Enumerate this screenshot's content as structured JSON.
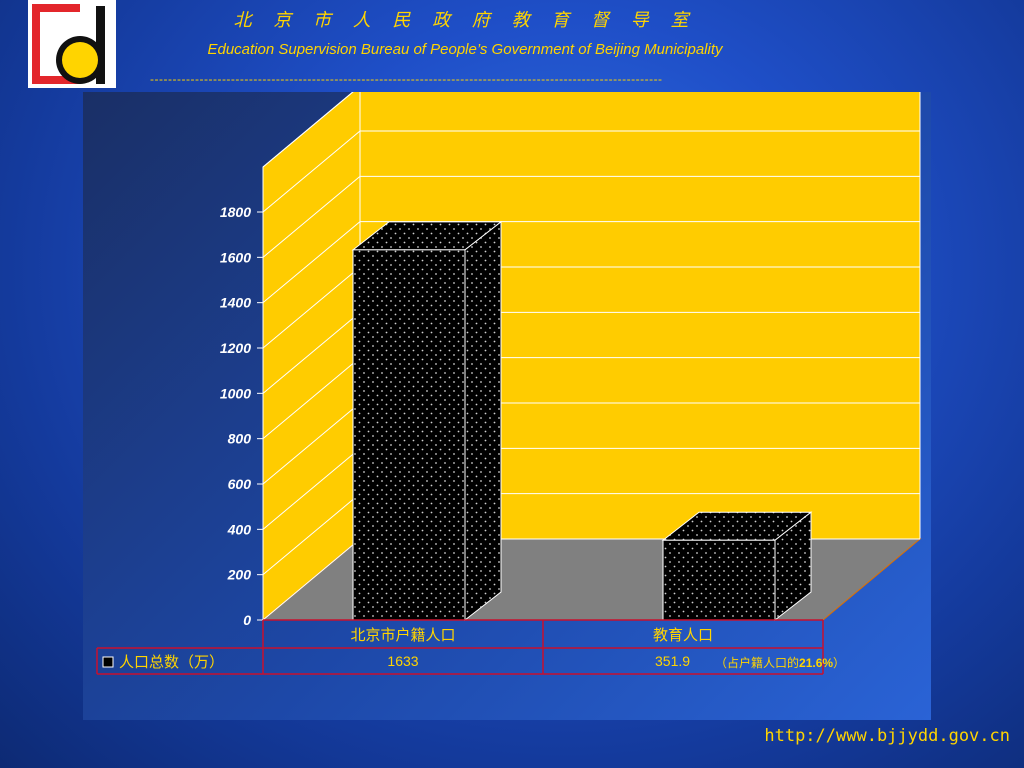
{
  "header": {
    "title_cn": "北 京 市 人 民 政 府 教 育 督 导 室",
    "title_en": "Education Supervision Bureau of People’s Government of Beijing Municipality",
    "divider": "------------------------------------------------------------------------------------------------------------------"
  },
  "colors": {
    "accent_yellow": "#ffd400",
    "chart_wall": "#ffcc00",
    "chart_floor": "#808080",
    "bar": "#000000",
    "table_border": "#c8102e",
    "logo_red": "#e3262b"
  },
  "chart_data": {
    "type": "bar",
    "style": "3d",
    "categories": [
      "北京市户籍人口",
      "教育人口"
    ],
    "series": [
      {
        "name": "人口总数（万）",
        "values": [
          1633,
          351.9
        ],
        "value_labels": [
          "1633",
          "351.9"
        ]
      }
    ],
    "annotation_prefix": "（占户籍人口的",
    "annotation_value": "21.6%",
    "annotation_suffix": "）",
    "ylim": [
      0,
      1800
    ],
    "yticks": [
      "0",
      "200",
      "400",
      "600",
      "800",
      "1000",
      "1200",
      "1400",
      "1600",
      "1800"
    ],
    "grid": true,
    "legend_placement": "data-table"
  },
  "footer": {
    "url": "http://www.bjjydd.gov.cn"
  }
}
